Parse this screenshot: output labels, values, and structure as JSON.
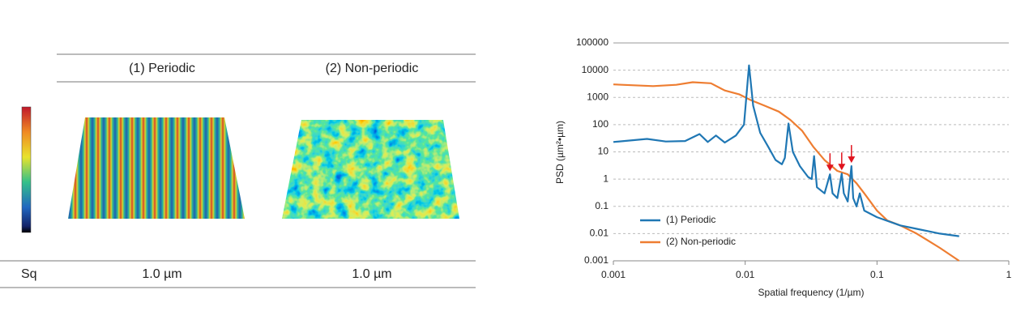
{
  "table": {
    "columns": [
      "(1) Periodic",
      "(2) Non-periodic"
    ],
    "rows": [
      [
        "Sq",
        "1.0 µm",
        "1.0 µm"
      ]
    ]
  },
  "chart_data": {
    "type": "line",
    "x_label": "Spatial frequency (1/µm)",
    "y_label": "PSD (µm²•µm)",
    "x_scale": "log",
    "y_scale": "log",
    "grid": true,
    "legend": "lower-left",
    "xlim": [
      0.001,
      1
    ],
    "xticks": [
      0.001,
      0.01,
      0.1,
      1
    ],
    "ylim": [
      0.001,
      100000
    ],
    "yticks": [
      0.001,
      0.01,
      0.1,
      1,
      10,
      100,
      1000,
      10000,
      100000
    ],
    "series": [
      {
        "name": "(1) Periodic",
        "color": "#1f77b4",
        "x": [
          0.001,
          0.0018,
          0.0025,
          0.0035,
          0.0045,
          0.0052,
          0.006,
          0.007,
          0.0085,
          0.0098,
          0.0107,
          0.0115,
          0.013,
          0.015,
          0.017,
          0.019,
          0.02,
          0.0213,
          0.023,
          0.026,
          0.03,
          0.032,
          0.0333,
          0.035,
          0.04,
          0.044,
          0.046,
          0.05,
          0.054,
          0.056,
          0.06,
          0.064,
          0.066,
          0.07,
          0.074,
          0.08,
          0.1,
          0.15,
          0.2,
          0.3,
          0.42
        ],
        "values": [
          23,
          30,
          24,
          25,
          45,
          23,
          40,
          22,
          40,
          100,
          15000,
          500,
          50,
          15,
          5,
          3.5,
          6,
          110,
          10,
          3,
          1.2,
          1,
          7,
          0.5,
          0.3,
          1.5,
          0.3,
          0.2,
          1.6,
          0.3,
          0.15,
          3,
          0.2,
          0.1,
          0.3,
          0.07,
          0.04,
          0.02,
          0.015,
          0.01,
          0.008
        ]
      },
      {
        "name": "(2) Non-periodic",
        "color": "#ee7d31",
        "x": [
          0.001,
          0.002,
          0.003,
          0.004,
          0.0055,
          0.007,
          0.009,
          0.011,
          0.014,
          0.018,
          0.022,
          0.027,
          0.033,
          0.04,
          0.05,
          0.06,
          0.07,
          0.08,
          0.1,
          0.12,
          0.15,
          0.2,
          0.3,
          0.42
        ],
        "values": [
          3000,
          2600,
          2900,
          3600,
          3300,
          1800,
          1300,
          800,
          500,
          300,
          150,
          60,
          15,
          5,
          2,
          1.5,
          0.7,
          0.3,
          0.07,
          0.03,
          0.02,
          0.01,
          0.003,
          0.001
        ]
      }
    ]
  }
}
